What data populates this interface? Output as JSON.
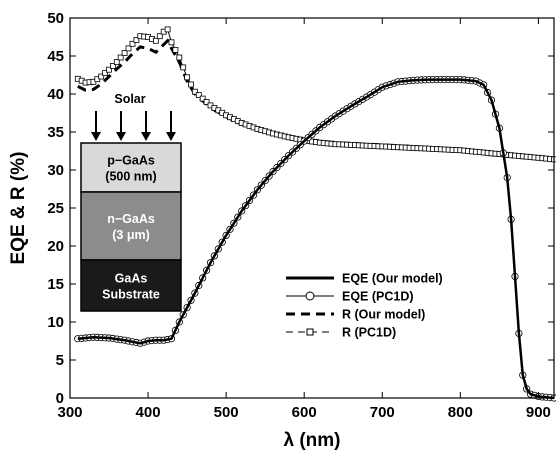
{
  "chart_data": {
    "type": "line",
    "title": "",
    "xlabel": "λ (nm)",
    "ylabel": "EQE & R (%)",
    "xlim": [
      300,
      920
    ],
    "ylim": [
      0,
      50
    ],
    "xticks": [
      300,
      400,
      500,
      600,
      700,
      800,
      900
    ],
    "yticks": [
      0,
      5,
      10,
      15,
      20,
      25,
      30,
      35,
      40,
      45,
      50
    ],
    "grid": false,
    "legend_position": "lower-right",
    "series": [
      {
        "name": "EQE (Our model)",
        "style": "solid-thick",
        "color": "#000000",
        "x": [
          310,
          330,
          350,
          370,
          390,
          400,
          410,
          420,
          430,
          440,
          460,
          480,
          500,
          520,
          540,
          560,
          580,
          600,
          620,
          640,
          660,
          680,
          700,
          720,
          740,
          760,
          780,
          800,
          820,
          830,
          840,
          850,
          860,
          865,
          870,
          875,
          880,
          885,
          890,
          900,
          910,
          920
        ],
        "y": [
          7.8,
          8.0,
          7.9,
          7.6,
          7.2,
          7.5,
          7.6,
          7.6,
          7.8,
          10.0,
          13.8,
          17.8,
          21.4,
          24.6,
          27.4,
          29.8,
          31.9,
          33.8,
          35.6,
          37.1,
          38.4,
          39.6,
          40.9,
          41.6,
          41.8,
          41.9,
          41.9,
          41.9,
          41.7,
          41.2,
          39.2,
          35.5,
          29.0,
          23.5,
          16.0,
          8.5,
          3.0,
          1.2,
          0.5,
          0.2,
          0.1,
          0.0
        ]
      },
      {
        "name": "EQE (PC1D)",
        "style": "thin-circles",
        "color": "#000000",
        "x": [
          310,
          330,
          350,
          370,
          390,
          400,
          410,
          420,
          430,
          440,
          460,
          480,
          500,
          520,
          540,
          560,
          580,
          600,
          620,
          640,
          660,
          680,
          700,
          720,
          740,
          760,
          780,
          800,
          820,
          830,
          840,
          850,
          860,
          865,
          870,
          875,
          880,
          885,
          890,
          900,
          910,
          920
        ],
        "y": [
          7.8,
          8.0,
          7.9,
          7.6,
          7.2,
          7.5,
          7.6,
          7.6,
          7.8,
          10.0,
          13.8,
          17.8,
          21.4,
          24.6,
          27.4,
          29.8,
          31.9,
          33.8,
          35.6,
          37.1,
          38.4,
          39.6,
          40.9,
          41.6,
          41.8,
          41.9,
          41.9,
          41.9,
          41.7,
          41.2,
          39.2,
          35.5,
          29.0,
          23.5,
          16.0,
          8.5,
          3.0,
          1.2,
          0.5,
          0.2,
          0.1,
          0.0
        ]
      },
      {
        "name": "R (Our model)",
        "style": "dashed-thick",
        "color": "#000000",
        "x": [
          310,
          320,
          330,
          340,
          350,
          360,
          370,
          380,
          390,
          400,
          410,
          420,
          425,
          430,
          440,
          450,
          460,
          480,
          500,
          520,
          540,
          560,
          580,
          600,
          620,
          640,
          660,
          680,
          700,
          720,
          740,
          760,
          780,
          800,
          820,
          840,
          860,
          880,
          900,
          920
        ],
        "y": [
          41.0,
          40.5,
          40.6,
          41.3,
          42.3,
          43.3,
          44.2,
          45.3,
          46.2,
          46.0,
          45.5,
          46.5,
          47.0,
          46.0,
          44.2,
          41.7,
          40.0,
          38.2,
          37.0,
          36.0,
          35.3,
          34.8,
          34.3,
          34.0,
          33.8,
          33.6,
          33.5,
          33.4,
          33.3,
          33.2,
          33.1,
          32.9,
          32.7,
          32.5,
          32.3,
          32.0,
          31.8,
          31.6,
          31.5,
          31.3
        ]
      },
      {
        "name": "R (PC1D)",
        "style": "thin-squares",
        "color": "#000000",
        "x": [
          310,
          320,
          330,
          340,
          350,
          360,
          370,
          380,
          390,
          400,
          410,
          420,
          425,
          430,
          440,
          450,
          460,
          480,
          500,
          520,
          540,
          560,
          580,
          600,
          620,
          640,
          660,
          680,
          700,
          720,
          740,
          760,
          780,
          800,
          820,
          840,
          860,
          880,
          900,
          920
        ],
        "y": [
          42.0,
          41.5,
          41.6,
          42.3,
          43.2,
          44.2,
          45.4,
          46.6,
          47.6,
          47.5,
          47.0,
          48.2,
          48.5,
          46.8,
          44.8,
          42.2,
          40.3,
          38.5,
          37.2,
          36.2,
          35.4,
          34.8,
          34.3,
          33.9,
          33.6,
          33.4,
          33.3,
          33.2,
          33.1,
          33.0,
          32.9,
          32.8,
          32.7,
          32.6,
          32.4,
          32.2,
          32.0,
          31.8,
          31.6,
          31.4
        ]
      }
    ],
    "inset": {
      "solar_label": "Solar",
      "arrow_count": 4,
      "layers": [
        {
          "line1": "p−GaAs",
          "line2": "(500 nm)",
          "fill": "#d9d9d9",
          "text_color": "#000000"
        },
        {
          "line1": "n−GaAs",
          "line2": "(3 μm)",
          "fill": "#8c8c8c",
          "text_color": "#ffffff"
        },
        {
          "line1": "GaAs",
          "line2": "Substrate",
          "fill": "#1a1a1a",
          "text_color": "#ffffff"
        }
      ]
    }
  }
}
